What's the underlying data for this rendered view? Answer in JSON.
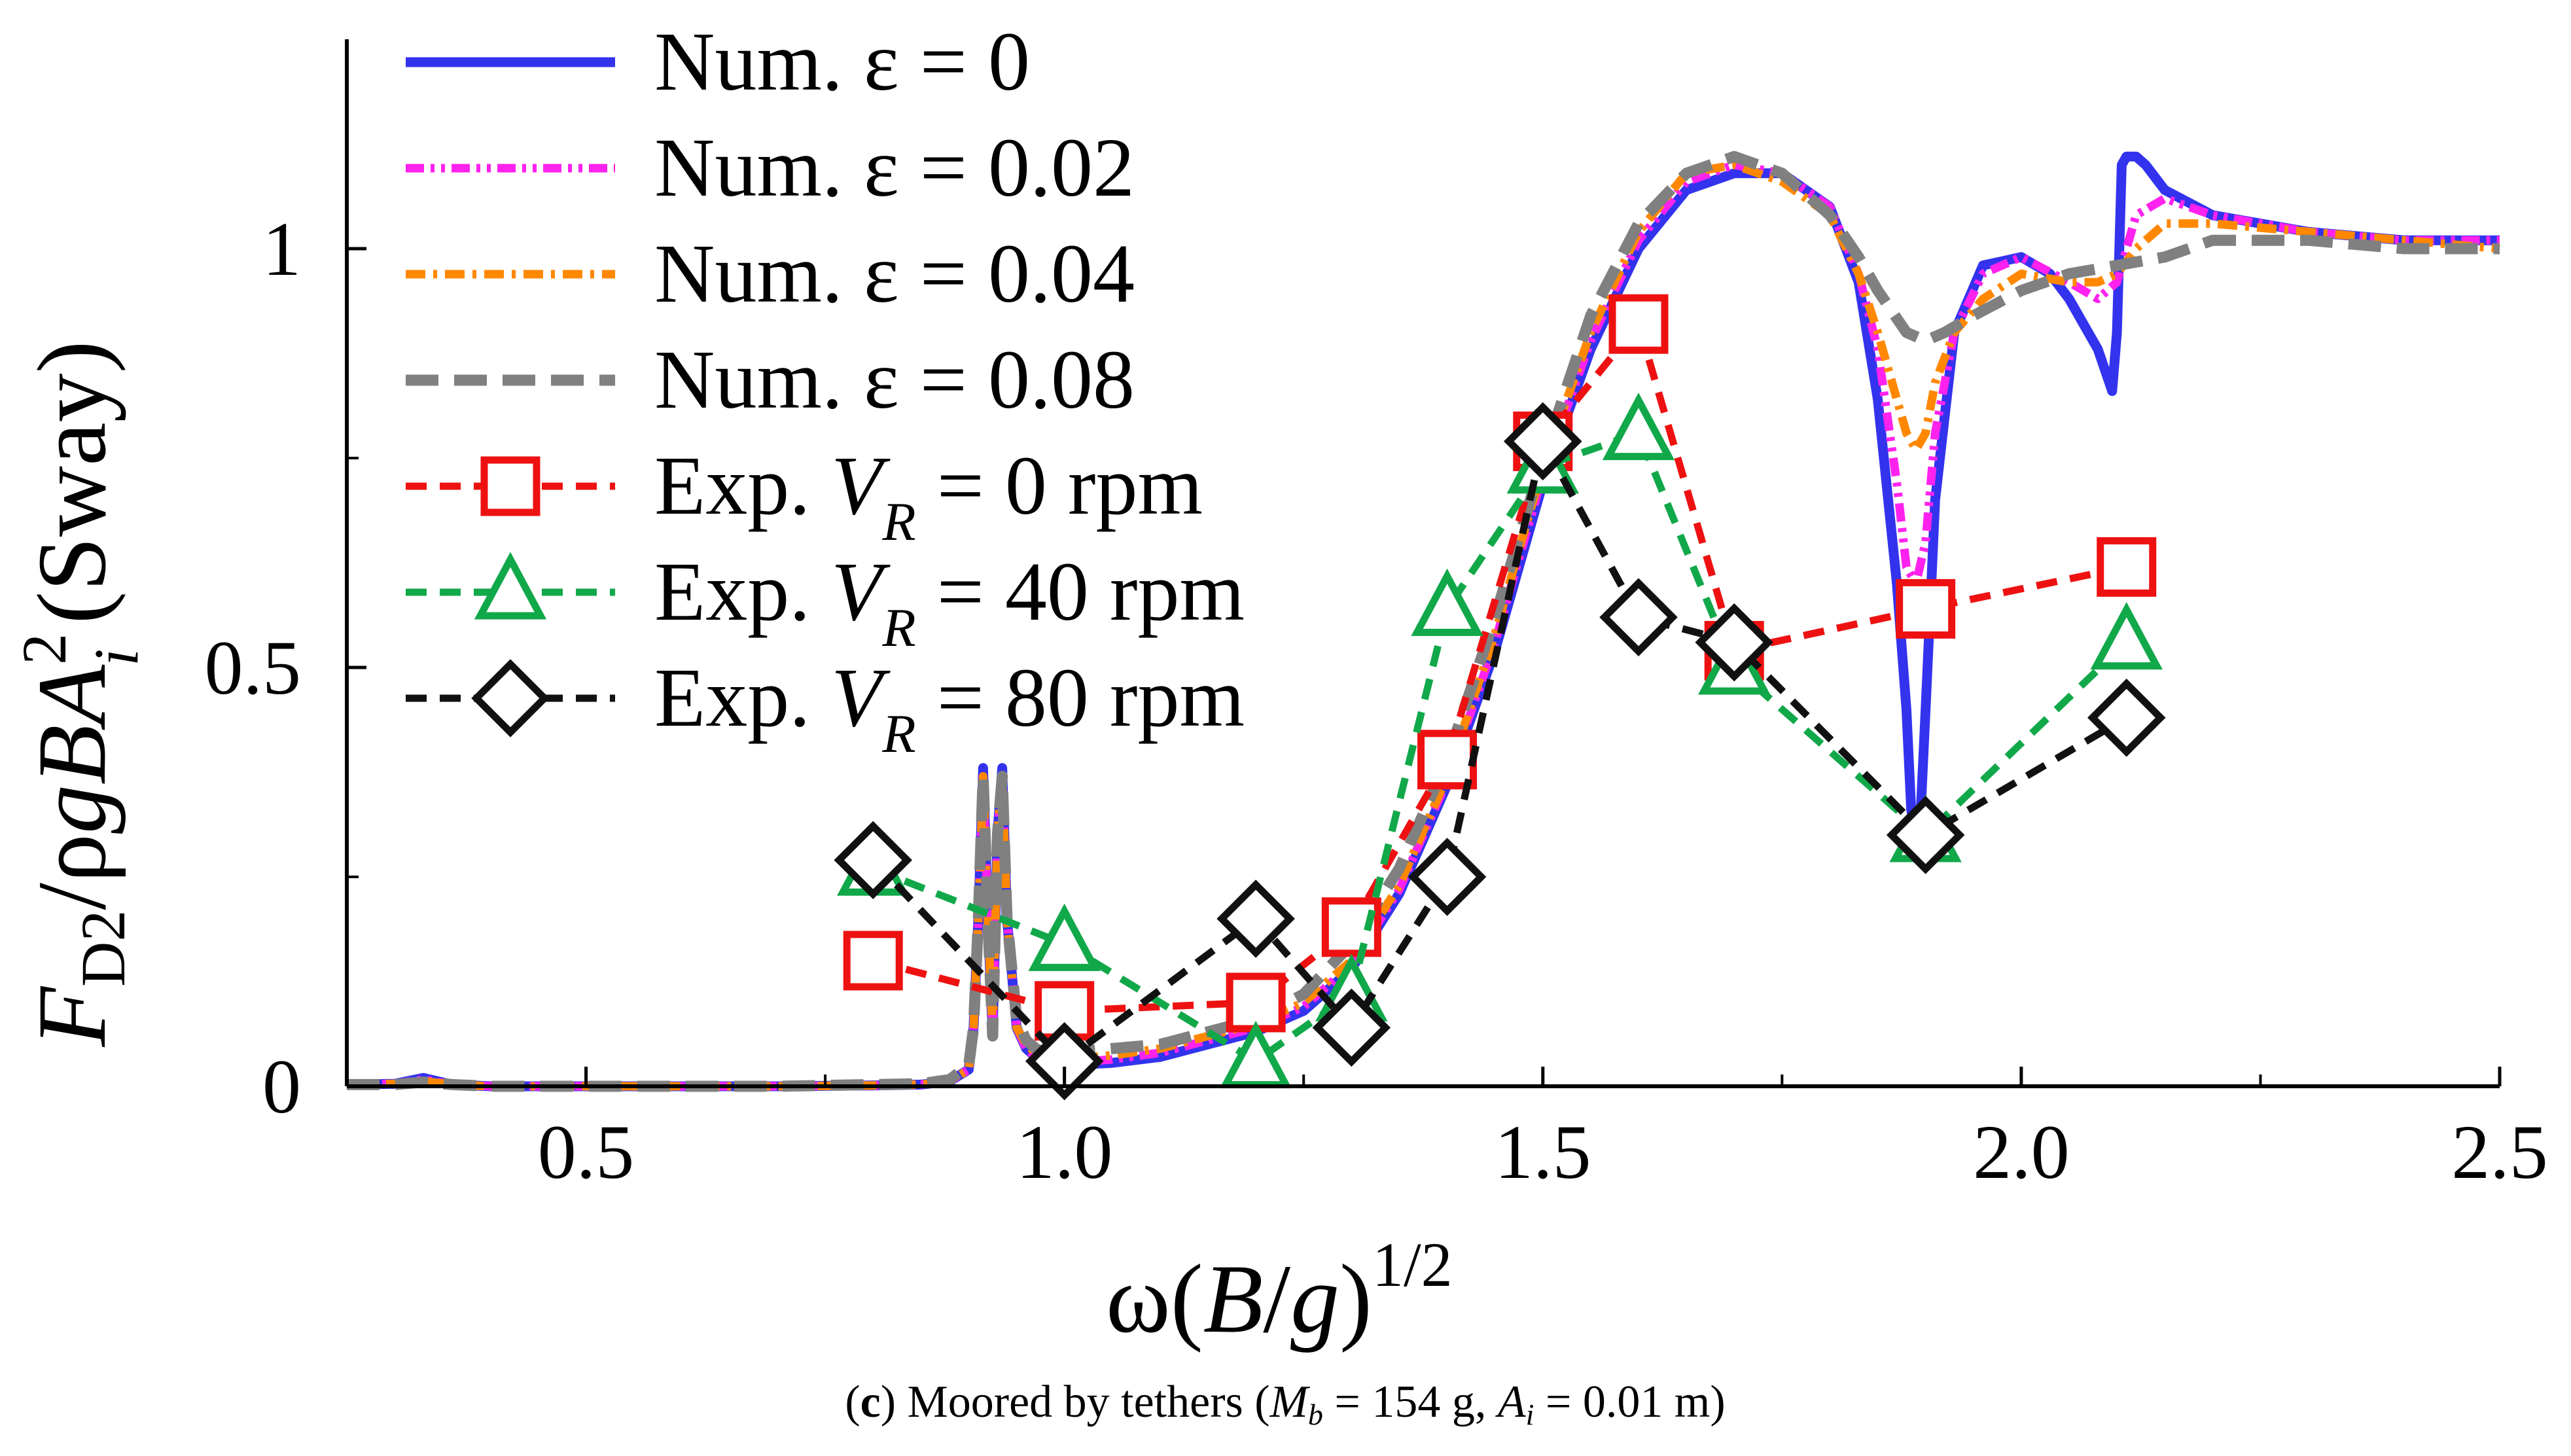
{
  "chart_data": {
    "type": "line",
    "title": "",
    "caption": {
      "label": "c",
      "text_start": " Moored by tethers (",
      "mass_symbol": "M",
      "mass_sub": "b",
      "mass_value": " = 154 g, ",
      "amp_symbol": "A",
      "amp_sub": "i",
      "amp_value": " = 0.01 m)"
    },
    "xlabel": {
      "omega": "ω(",
      "B": "B",
      "slash": "/",
      "g": "g",
      "close": ")",
      "power": "1/2"
    },
    "ylabel": {
      "F": "F",
      "sub": "D2",
      "mid": "/ρ",
      "g": "g",
      "B": "B",
      "A": "A",
      "sup": "2",
      "sub_i": "i",
      "tail": " (Sway)"
    },
    "xlim": [
      0.25,
      2.5
    ],
    "ylim": [
      0,
      1.25
    ],
    "x_ticks": [
      {
        "value": 0.5,
        "label": "0.5"
      },
      {
        "value": 1.0,
        "label": "1.0"
      },
      {
        "value": 1.5,
        "label": "1.5"
      },
      {
        "value": 2.0,
        "label": "2.0"
      },
      {
        "value": 2.5,
        "label": "2.5"
      }
    ],
    "x_minor_ticks": [
      0.75,
      1.25,
      1.75,
      2.25
    ],
    "y_ticks": [
      {
        "value": 0,
        "label": "0"
      },
      {
        "value": 0.5,
        "label": "0.5"
      },
      {
        "value": 1,
        "label": "1"
      }
    ],
    "y_minor_ticks": [
      0.25,
      0.75
    ],
    "series": [
      {
        "name": "Num. ε = 0",
        "legend": {
          "prefix": "Num. ε = 0",
          "italic": "",
          "sub": "",
          "suffix": ""
        },
        "kind": "numerical",
        "color": "#3333ee",
        "dash": "",
        "width": 15,
        "marker": "none",
        "x": [
          0.25,
          0.3,
          0.33,
          0.36,
          0.4,
          0.5,
          0.6,
          0.7,
          0.8,
          0.85,
          0.88,
          0.9,
          0.905,
          0.91,
          0.915,
          0.92,
          0.925,
          0.93,
          0.935,
          0.94,
          0.95,
          0.96,
          0.97,
          0.98,
          1.0,
          1.05,
          1.1,
          1.15,
          1.2,
          1.25,
          1.3,
          1.35,
          1.4,
          1.45,
          1.5,
          1.55,
          1.6,
          1.65,
          1.7,
          1.75,
          1.8,
          1.83,
          1.85,
          1.87,
          1.88,
          1.885,
          1.89,
          1.895,
          1.9,
          1.91,
          1.93,
          1.96,
          2.0,
          2.03,
          2.05,
          2.08,
          2.095,
          2.1,
          2.105,
          2.11,
          2.12,
          2.13,
          2.15,
          2.2,
          2.3,
          2.4,
          2.5
        ],
        "y": [
          0.002,
          0.003,
          0.01,
          0.002,
          0.0,
          0.0,
          0.0,
          0.0,
          0.001,
          0.002,
          0.006,
          0.02,
          0.07,
          0.2,
          0.38,
          0.2,
          0.06,
          0.3,
          0.38,
          0.2,
          0.07,
          0.045,
          0.035,
          0.03,
          0.025,
          0.028,
          0.035,
          0.05,
          0.065,
          0.09,
          0.14,
          0.23,
          0.36,
          0.52,
          0.72,
          0.88,
          1.0,
          1.07,
          1.09,
          1.09,
          1.05,
          0.96,
          0.82,
          0.6,
          0.45,
          0.33,
          0.3,
          0.33,
          0.45,
          0.7,
          0.9,
          0.98,
          0.99,
          0.97,
          0.94,
          0.88,
          0.83,
          0.9,
          1.1,
          1.11,
          1.11,
          1.1,
          1.07,
          1.04,
          1.02,
          1.01,
          1.01
        ]
      },
      {
        "name": "Num. ε = 0.02",
        "legend": {
          "prefix": "Num. ε = 0.02",
          "italic": "",
          "sub": "",
          "suffix": ""
        },
        "kind": "numerical",
        "color": "#ff22ee",
        "dash": "28,10,6,10,6,10",
        "width": 13,
        "marker": "none",
        "x": [
          0.25,
          0.3,
          0.33,
          0.36,
          0.4,
          0.5,
          0.6,
          0.7,
          0.8,
          0.85,
          0.88,
          0.9,
          0.905,
          0.91,
          0.915,
          0.92,
          0.925,
          0.93,
          0.935,
          0.94,
          0.95,
          0.96,
          0.97,
          0.98,
          1.0,
          1.05,
          1.1,
          1.15,
          1.2,
          1.25,
          1.3,
          1.35,
          1.4,
          1.45,
          1.5,
          1.55,
          1.6,
          1.65,
          1.7,
          1.75,
          1.8,
          1.83,
          1.85,
          1.87,
          1.88,
          1.89,
          1.9,
          1.91,
          1.93,
          1.96,
          2.0,
          2.05,
          2.08,
          2.1,
          2.12,
          2.15,
          2.2,
          2.3,
          2.4,
          2.5
        ],
        "y": [
          0.002,
          0.003,
          0.008,
          0.002,
          0.0,
          0.0,
          0.0,
          0.0,
          0.001,
          0.002,
          0.006,
          0.02,
          0.07,
          0.2,
          0.37,
          0.2,
          0.06,
          0.3,
          0.37,
          0.2,
          0.07,
          0.045,
          0.035,
          0.03,
          0.028,
          0.032,
          0.04,
          0.055,
          0.07,
          0.095,
          0.145,
          0.235,
          0.365,
          0.53,
          0.73,
          0.89,
          1.01,
          1.08,
          1.1,
          1.09,
          1.05,
          0.97,
          0.88,
          0.72,
          0.62,
          0.6,
          0.65,
          0.78,
          0.9,
          0.97,
          0.99,
          0.96,
          0.94,
          0.96,
          1.04,
          1.06,
          1.04,
          1.02,
          1.01,
          1.01
        ]
      },
      {
        "name": "Num. ε = 0.04",
        "legend": {
          "prefix": "Num. ε = 0.04",
          "italic": "",
          "sub": "",
          "suffix": ""
        },
        "kind": "numerical",
        "color": "#ff8800",
        "dash": "30,12,6,12",
        "width": 13,
        "marker": "none",
        "x": [
          0.25,
          0.3,
          0.33,
          0.36,
          0.4,
          0.5,
          0.6,
          0.7,
          0.8,
          0.85,
          0.88,
          0.9,
          0.905,
          0.91,
          0.915,
          0.92,
          0.925,
          0.93,
          0.935,
          0.94,
          0.95,
          0.96,
          0.97,
          0.98,
          1.0,
          1.05,
          1.1,
          1.15,
          1.2,
          1.25,
          1.3,
          1.35,
          1.4,
          1.45,
          1.5,
          1.55,
          1.6,
          1.65,
          1.7,
          1.75,
          1.8,
          1.83,
          1.85,
          1.87,
          1.88,
          1.89,
          1.9,
          1.91,
          1.93,
          1.96,
          2.0,
          2.05,
          2.08,
          2.1,
          2.12,
          2.15,
          2.2,
          2.3,
          2.4,
          2.5
        ],
        "y": [
          0.002,
          0.003,
          0.006,
          0.002,
          0.0,
          0.0,
          0.0,
          0.0,
          0.001,
          0.002,
          0.006,
          0.02,
          0.07,
          0.2,
          0.37,
          0.2,
          0.06,
          0.3,
          0.37,
          0.2,
          0.07,
          0.05,
          0.04,
          0.035,
          0.032,
          0.037,
          0.045,
          0.06,
          0.075,
          0.1,
          0.15,
          0.24,
          0.37,
          0.54,
          0.74,
          0.9,
          1.02,
          1.09,
          1.1,
          1.08,
          1.04,
          0.97,
          0.9,
          0.82,
          0.78,
          0.76,
          0.78,
          0.84,
          0.9,
          0.94,
          0.97,
          0.96,
          0.96,
          0.97,
          1.0,
          1.03,
          1.03,
          1.02,
          1.01,
          1.0
        ]
      },
      {
        "name": "Num. ε = 0.08",
        "legend": {
          "prefix": "Num. ε = 0.08",
          "italic": "",
          "sub": "",
          "suffix": ""
        },
        "kind": "numerical",
        "color": "#808080",
        "dash": "50,24",
        "width": 17,
        "marker": "none",
        "x": [
          0.25,
          0.3,
          0.33,
          0.36,
          0.4,
          0.5,
          0.6,
          0.7,
          0.8,
          0.85,
          0.88,
          0.9,
          0.905,
          0.91,
          0.915,
          0.92,
          0.925,
          0.93,
          0.935,
          0.94,
          0.95,
          0.96,
          0.97,
          0.98,
          1.0,
          1.05,
          1.1,
          1.15,
          1.2,
          1.25,
          1.3,
          1.35,
          1.4,
          1.45,
          1.5,
          1.55,
          1.6,
          1.65,
          1.7,
          1.75,
          1.8,
          1.83,
          1.85,
          1.88,
          1.9,
          1.92,
          1.95,
          2.0,
          2.05,
          2.1,
          2.15,
          2.2,
          2.3,
          2.4,
          2.5
        ],
        "y": [
          0.002,
          0.002,
          0.005,
          0.002,
          0.0,
          0.0,
          0.0,
          0.0,
          0.002,
          0.003,
          0.008,
          0.025,
          0.07,
          0.2,
          0.37,
          0.2,
          0.06,
          0.3,
          0.37,
          0.2,
          0.08,
          0.055,
          0.045,
          0.04,
          0.04,
          0.045,
          0.05,
          0.065,
          0.08,
          0.11,
          0.17,
          0.26,
          0.39,
          0.56,
          0.75,
          0.92,
          1.03,
          1.09,
          1.11,
          1.09,
          1.04,
          0.99,
          0.95,
          0.9,
          0.89,
          0.9,
          0.92,
          0.95,
          0.97,
          0.98,
          0.99,
          1.01,
          1.01,
          1.0,
          1.0
        ]
      },
      {
        "name": "Exp. VR = 0 rpm",
        "legend": {
          "prefix": "Exp. ",
          "italic": "V",
          "sub": "R",
          "suffix": " = 0 rpm"
        },
        "kind": "experimental",
        "color": "#ee1111",
        "dash": "32,20",
        "width": 11,
        "marker": "square",
        "x": [
          0.8,
          1.0,
          1.2,
          1.3,
          1.4,
          1.5,
          1.6,
          1.7,
          1.9,
          2.11
        ],
        "y": [
          0.15,
          0.09,
          0.1,
          0.19,
          0.39,
          0.77,
          0.91,
          0.52,
          0.57,
          0.62
        ]
      },
      {
        "name": "Exp. VR = 40 rpm",
        "legend": {
          "prefix": "Exp. ",
          "italic": "V",
          "sub": "R",
          "suffix": " = 40 rpm"
        },
        "kind": "experimental",
        "color": "#11a84a",
        "dash": "32,20",
        "width": 11,
        "marker": "triangle",
        "x": [
          0.8,
          1.0,
          1.2,
          1.3,
          1.4,
          1.5,
          1.6,
          1.7,
          1.9,
          2.11
        ],
        "y": [
          0.26,
          0.17,
          0.03,
          0.11,
          0.57,
          0.74,
          0.78,
          0.5,
          0.3,
          0.53
        ]
      },
      {
        "name": "Exp. VR = 80 rpm",
        "legend": {
          "prefix": "Exp. ",
          "italic": "V",
          "sub": "R",
          "suffix": " = 80 rpm"
        },
        "kind": "experimental",
        "color": "#111111",
        "dash": "32,20",
        "width": 11,
        "marker": "diamond",
        "x": [
          0.8,
          1.0,
          1.2,
          1.3,
          1.4,
          1.5,
          1.6,
          1.7,
          1.9,
          2.11
        ],
        "y": [
          0.27,
          0.03,
          0.2,
          0.07,
          0.25,
          0.77,
          0.56,
          0.53,
          0.3,
          0.44
        ]
      }
    ],
    "grid": false,
    "legend_position": "top-left"
  }
}
